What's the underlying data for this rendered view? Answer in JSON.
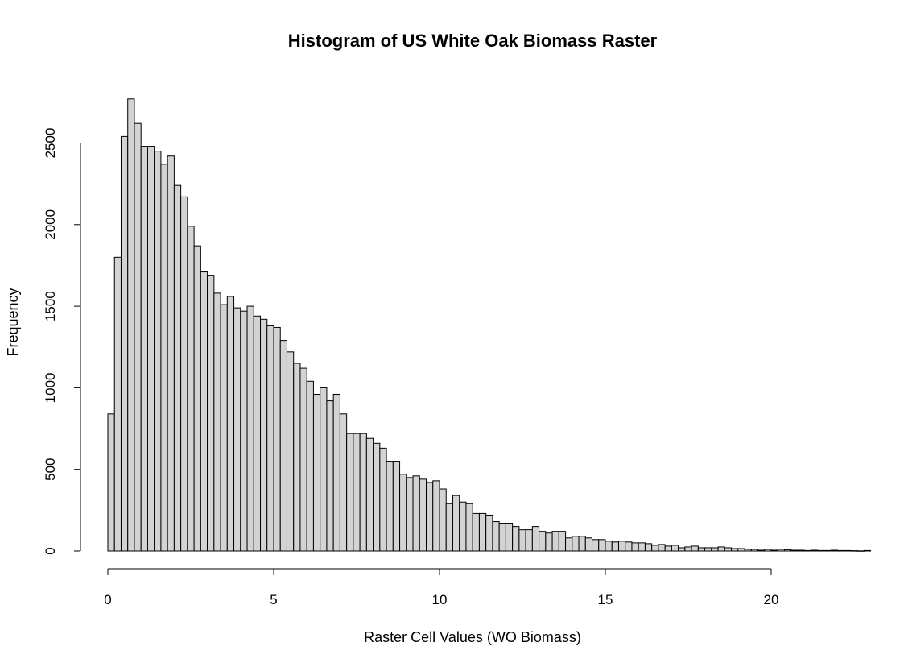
{
  "chart_data": {
    "type": "bar",
    "title": "Histogram of US White Oak Biomass Raster",
    "xlabel": "Raster Cell Values (WO Biomass)",
    "ylabel": "Frequency",
    "bar_color": "#d3d3d3",
    "border_color": "#000000",
    "bin_width": 0.2,
    "x_start": 0,
    "xlim": [
      0,
      22
    ],
    "ylim": [
      0,
      2500
    ],
    "x_ticks": [
      0,
      5,
      10,
      15,
      20
    ],
    "y_ticks": [
      0,
      500,
      1000,
      1500,
      2000,
      2500
    ],
    "grid": false,
    "values": [
      840,
      1800,
      2540,
      2770,
      2620,
      2480,
      2480,
      2450,
      2370,
      2420,
      2240,
      2170,
      1990,
      1870,
      1710,
      1690,
      1580,
      1510,
      1560,
      1490,
      1470,
      1500,
      1440,
      1420,
      1380,
      1370,
      1290,
      1220,
      1150,
      1120,
      1040,
      960,
      1000,
      920,
      960,
      840,
      720,
      720,
      720,
      690,
      660,
      630,
      550,
      550,
      470,
      450,
      460,
      440,
      420,
      430,
      380,
      290,
      340,
      300,
      290,
      230,
      230,
      220,
      180,
      170,
      170,
      150,
      130,
      130,
      150,
      120,
      110,
      120,
      120,
      80,
      90,
      90,
      80,
      70,
      70,
      60,
      55,
      60,
      55,
      50,
      50,
      45,
      35,
      40,
      30,
      35,
      20,
      25,
      30,
      20,
      20,
      20,
      25,
      20,
      15,
      15,
      10,
      10,
      5,
      10,
      5,
      10,
      8,
      5,
      5,
      3,
      5,
      3,
      3,
      5,
      3,
      3,
      2,
      1,
      3
    ]
  }
}
